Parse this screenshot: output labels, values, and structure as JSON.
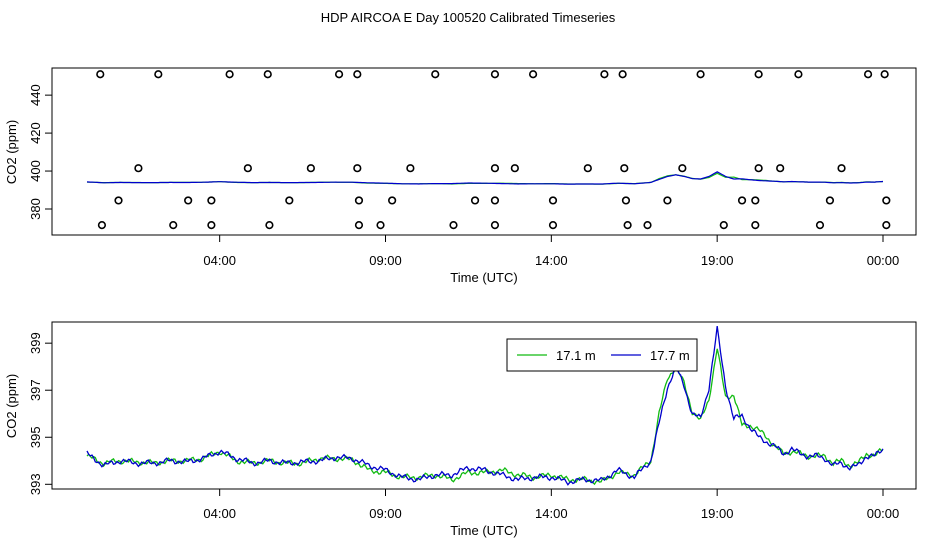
{
  "title": "HDP AIRCOA E  Day 100520  Calibrated Timeseries",
  "colors": {
    "series_a": "#11bb11",
    "series_b": "#0000cc",
    "axis": "#000000",
    "points": "#000000"
  },
  "chart_data": [
    {
      "type": "scatter",
      "xlabel": "Time (UTC)",
      "ylabel": "CO2 (ppm)",
      "x_unit": "hours UTC, starting 00:00 (ticks wrap to 00:00 at 24 h)",
      "xlim": [
        0.0,
        24.0
      ],
      "ylim": [
        366.3,
        454.3
      ],
      "x_ticks": [
        4,
        9,
        14,
        19,
        24
      ],
      "x_tick_labels": [
        "04:00",
        "09:00",
        "14:00",
        "19:00",
        "00:00"
      ],
      "y_ticks": [
        380,
        400,
        420,
        440
      ],
      "y_tick_labels": [
        "380",
        "400",
        "420",
        "440"
      ],
      "grid": false,
      "outlier_points": {
        "x": [
          0.4,
          2.15,
          4.3,
          5.45,
          7.6,
          8.15,
          10.5,
          12.3,
          13.45,
          15.6,
          16.15,
          18.5,
          20.25,
          21.45,
          23.55,
          24.05,
          1.55,
          4.85,
          6.75,
          8.15,
          9.75,
          12.3,
          12.9,
          15.1,
          16.2,
          17.95,
          20.25,
          20.9,
          22.75,
          0.95,
          3.05,
          3.75,
          6.1,
          8.2,
          9.2,
          11.7,
          12.3,
          14.05,
          16.25,
          17.5,
          19.75,
          20.15,
          22.4,
          24.1,
          0.45,
          2.6,
          3.75,
          5.5,
          8.2,
          8.85,
          11.05,
          12.3,
          14.05,
          16.3,
          16.9,
          19.2,
          20.15,
          22.1,
          24.1
        ],
        "y": [
          451,
          451,
          451,
          451,
          451,
          451,
          451,
          451,
          451,
          451,
          451,
          451,
          451,
          451,
          451,
          451,
          401.5,
          401.5,
          401.5,
          401.5,
          401.5,
          401.5,
          401.5,
          401.5,
          401.5,
          401.5,
          401.5,
          401.5,
          401.5,
          384.5,
          384.5,
          384.5,
          384.5,
          384.5,
          384.5,
          384.5,
          384.5,
          384.5,
          384.5,
          384.5,
          384.5,
          384.5,
          384.5,
          384.5,
          371.5,
          371.5,
          371.5,
          371.5,
          371.5,
          371.5,
          371.5,
          371.5,
          371.5,
          371.5,
          371.5,
          371.5,
          371.5,
          371.5,
          371.5
        ]
      },
      "series": [
        {
          "name": "17.1 m",
          "color": "#11bb11",
          "trace": "lower_panel"
        },
        {
          "name": "17.7 m",
          "color": "#0000cc",
          "trace": "lower_panel"
        }
      ]
    },
    {
      "type": "line",
      "xlabel": "Time (UTC)",
      "ylabel": "CO2 (ppm)",
      "xlim": [
        0.0,
        24.0
      ],
      "ylim": [
        392.8,
        399.9
      ],
      "x_ticks": [
        4,
        9,
        14,
        19,
        24
      ],
      "x_tick_labels": [
        "04:00",
        "09:00",
        "14:00",
        "19:00",
        "00:00"
      ],
      "y_ticks": [
        393,
        395,
        397,
        399
      ],
      "y_tick_labels": [
        "393",
        "395",
        "397",
        "399"
      ],
      "grid": false,
      "legend": {
        "placement": "top-center",
        "labels": [
          "17.1 m",
          "17.7 m"
        ]
      },
      "x": [
        0.0,
        0.5,
        1.0,
        1.5,
        2.0,
        2.5,
        3.0,
        3.5,
        4.0,
        4.5,
        5.0,
        5.5,
        6.0,
        6.5,
        7.0,
        7.5,
        8.0,
        8.5,
        9.0,
        9.5,
        10.0,
        10.5,
        11.0,
        11.5,
        12.0,
        12.5,
        13.0,
        13.5,
        14.0,
        14.5,
        15.0,
        15.5,
        16.0,
        16.5,
        17.0,
        17.25,
        17.5,
        17.75,
        18.0,
        18.25,
        18.5,
        18.75,
        19.0,
        19.25,
        19.5,
        19.75,
        20.0,
        20.25,
        20.5,
        20.75,
        21.0,
        21.25,
        21.5,
        21.75,
        22.0,
        22.25,
        22.5,
        22.75,
        23.0,
        23.25,
        23.5,
        23.75,
        24.0
      ],
      "series": [
        {
          "name": "17.1 m",
          "color": "#11bb11",
          "values": [
            394.2,
            393.9,
            394.0,
            393.95,
            393.9,
            394.0,
            394.0,
            394.1,
            394.4,
            394.0,
            393.9,
            394.0,
            393.9,
            393.9,
            394.1,
            394.1,
            394.05,
            393.6,
            393.5,
            393.3,
            393.3,
            393.4,
            393.2,
            393.5,
            393.5,
            393.6,
            393.4,
            393.3,
            393.4,
            393.2,
            393.2,
            393.1,
            393.5,
            393.4,
            394.0,
            396.0,
            397.5,
            398.0,
            397.3,
            396.1,
            395.7,
            396.6,
            398.8,
            396.7,
            396.8,
            395.5,
            395.5,
            395.3,
            395.0,
            394.6,
            394.3,
            394.4,
            394.3,
            394.2,
            394.2,
            394.2,
            393.9,
            394.0,
            393.8,
            393.9,
            394.3,
            394.2,
            394.5
          ]
        },
        {
          "name": "17.7 m",
          "color": "#0000cc",
          "values": [
            394.3,
            393.8,
            394.0,
            393.9,
            393.9,
            394.0,
            393.95,
            394.1,
            394.4,
            394.1,
            393.9,
            394.0,
            393.9,
            393.95,
            394.0,
            394.15,
            394.1,
            393.8,
            393.6,
            393.3,
            393.2,
            393.4,
            393.4,
            393.7,
            393.6,
            393.4,
            393.2,
            393.3,
            393.3,
            393.1,
            393.2,
            393.15,
            393.6,
            393.3,
            394.0,
            395.6,
            397.1,
            398.0,
            397.2,
            396.0,
            395.8,
            397.1,
            399.6,
            397.2,
            395.8,
            395.9,
            395.4,
            395.0,
            394.8,
            394.6,
            394.3,
            394.5,
            394.3,
            394.2,
            394.2,
            394.1,
            393.8,
            393.9,
            393.7,
            393.8,
            394.2,
            394.2,
            394.5
          ]
        }
      ]
    }
  ]
}
